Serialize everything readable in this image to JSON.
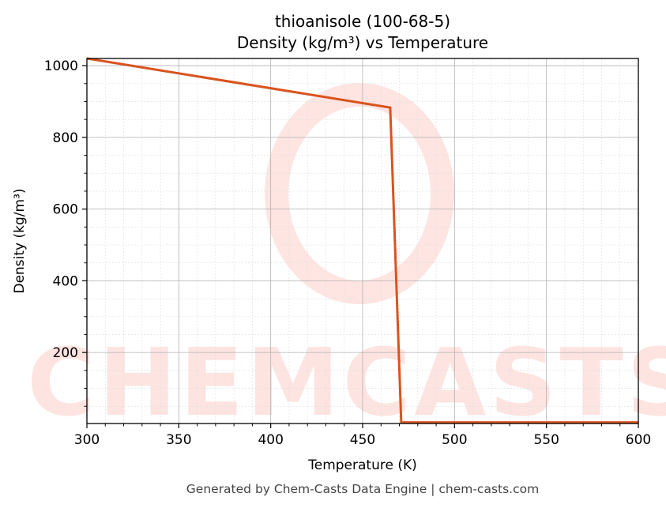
{
  "chart_data": {
    "type": "line",
    "title": "thioanisole (100-68-5)",
    "subtitle": "Density (kg/m³) vs Temperature",
    "xlabel": "Temperature (K)",
    "ylabel": "Density (kg/m³)",
    "xlim": [
      300,
      600
    ],
    "ylim": [
      2,
      1020
    ],
    "xticks": [
      300,
      350,
      400,
      450,
      500,
      550,
      600
    ],
    "yticks": [
      200,
      400,
      600,
      800,
      1000
    ],
    "grid": true,
    "legend": null,
    "series": [
      {
        "name": "Density",
        "color": "#d9531e",
        "x": [
          300,
          465,
          471,
          600
        ],
        "y": [
          1020,
          883,
          5,
          5
        ]
      }
    ],
    "watermark": "CHEMCASTS",
    "footer": "Generated by Chem-Casts Data Engine | chem-casts.com"
  }
}
